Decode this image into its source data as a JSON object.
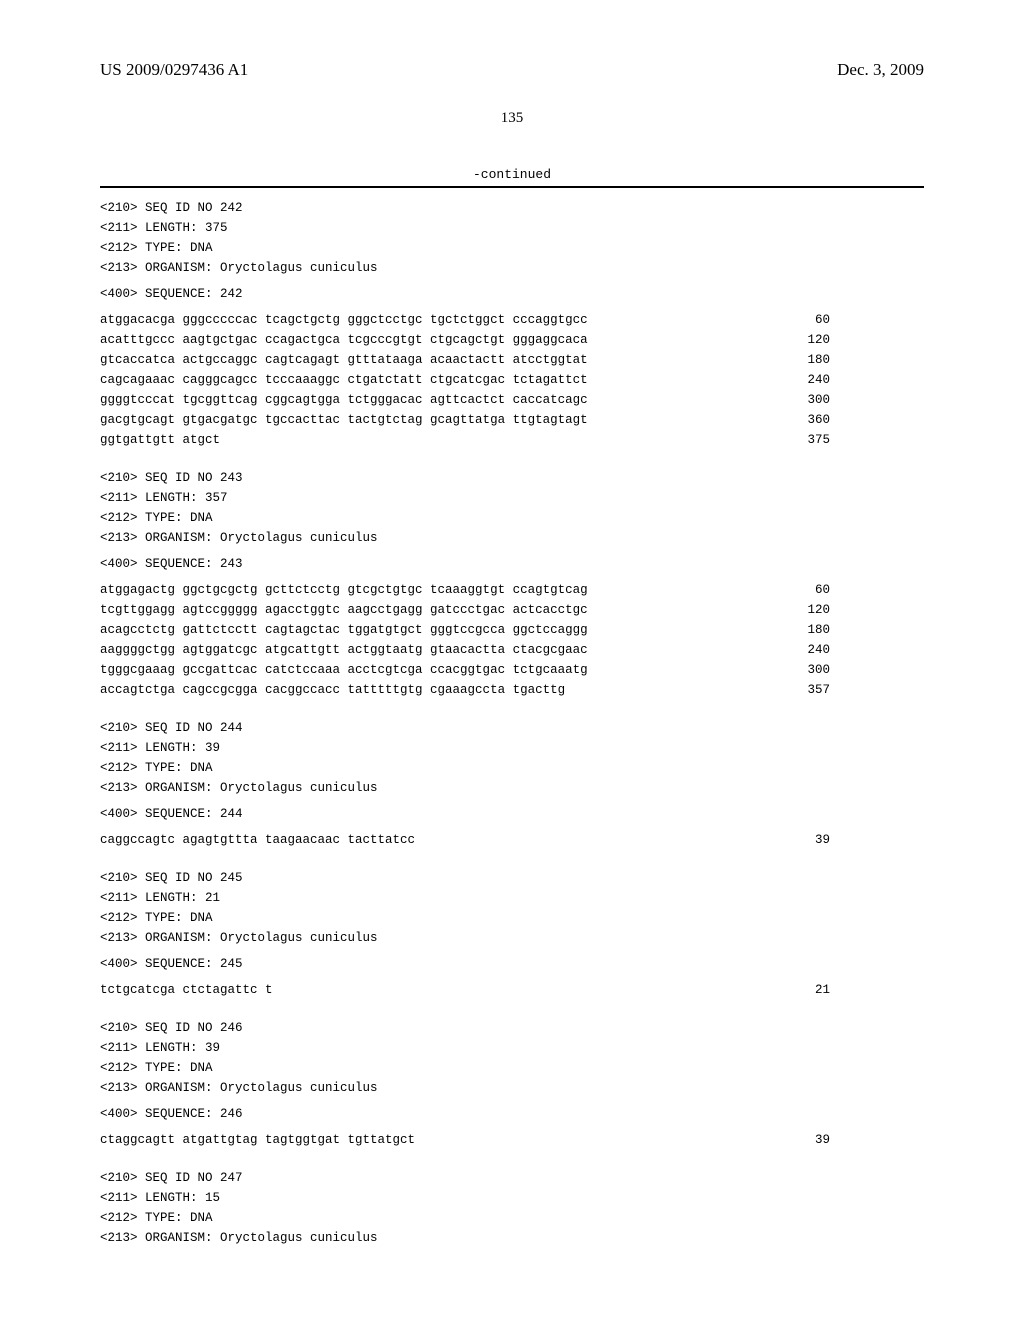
{
  "header": {
    "publication_number": "US 2009/0297436 A1",
    "publication_date": "Dec. 3, 2009",
    "page_number": "135",
    "continued": "-continued"
  },
  "sequences": [
    {
      "id": "242",
      "length": "375",
      "type": "DNA",
      "organism": "Oryctolagus cuniculus",
      "label": "<400> SEQUENCE: 242",
      "lines": [
        {
          "seq": "atggacacga gggcccccac tcagctgctg gggctcctgc tgctctggct cccaggtgcc",
          "pos": "60"
        },
        {
          "seq": "acatttgccc aagtgctgac ccagactgca tcgcccgtgt ctgcagctgt gggaggcaca",
          "pos": "120"
        },
        {
          "seq": "gtcaccatca actgccaggc cagtcagagt gtttataaga acaactactt atcctggtat",
          "pos": "180"
        },
        {
          "seq": "cagcagaaac cagggcagcc tcccaaaggc ctgatctatt ctgcatcgac tctagattct",
          "pos": "240"
        },
        {
          "seq": "ggggtcccat tgcggttcag cggcagtgga tctgggacac agttcactct caccatcagc",
          "pos": "300"
        },
        {
          "seq": "gacgtgcagt gtgacgatgc tgccacttac tactgtctag gcagttatga ttgtagtagt",
          "pos": "360"
        },
        {
          "seq": "ggtgattgtt atgct",
          "pos": "375"
        }
      ]
    },
    {
      "id": "243",
      "length": "357",
      "type": "DNA",
      "organism": "Oryctolagus cuniculus",
      "label": "<400> SEQUENCE: 243",
      "lines": [
        {
          "seq": "atggagactg ggctgcgctg gcttctcctg gtcgctgtgc tcaaaggtgt ccagtgtcag",
          "pos": "60"
        },
        {
          "seq": "tcgttggagg agtccggggg agacctggtc aagcctgagg gatccctgac actcacctgc",
          "pos": "120"
        },
        {
          "seq": "acagcctctg gattctcctt cagtagctac tggatgtgct gggtccgcca ggctccaggg",
          "pos": "180"
        },
        {
          "seq": "aaggggctgg agtggatcgc atgcattgtt actggtaatg gtaacactta ctacgcgaac",
          "pos": "240"
        },
        {
          "seq": "tgggcgaaag gccgattcac catctccaaa acctcgtcga ccacggtgac tctgcaaatg",
          "pos": "300"
        },
        {
          "seq": "accagtctga cagccgcgga cacggccacc tatttttgtg cgaaagccta tgacttg",
          "pos": "357"
        }
      ]
    },
    {
      "id": "244",
      "length": "39",
      "type": "DNA",
      "organism": "Oryctolagus cuniculus",
      "label": "<400> SEQUENCE: 244",
      "lines": [
        {
          "seq": "caggccagtc agagtgttta taagaacaac tacttatcc",
          "pos": "39"
        }
      ]
    },
    {
      "id": "245",
      "length": "21",
      "type": "DNA",
      "organism": "Oryctolagus cuniculus",
      "label": "<400> SEQUENCE: 245",
      "lines": [
        {
          "seq": "tctgcatcga ctctagattc t",
          "pos": "21"
        }
      ]
    },
    {
      "id": "246",
      "length": "39",
      "type": "DNA",
      "organism": "Oryctolagus cuniculus",
      "label": "<400> SEQUENCE: 246",
      "lines": [
        {
          "seq": "ctaggcagtt atgattgtag tagtggtgat tgttatgct",
          "pos": "39"
        }
      ]
    },
    {
      "id": "247",
      "length": "15",
      "type": "DNA",
      "organism": "Oryctolagus cuniculus",
      "label": "",
      "lines": []
    }
  ],
  "labels": {
    "seq_id": "<210> SEQ ID NO ",
    "length": "<211> LENGTH: ",
    "type": "<212> TYPE: ",
    "organism": "<213> ORGANISM: "
  }
}
